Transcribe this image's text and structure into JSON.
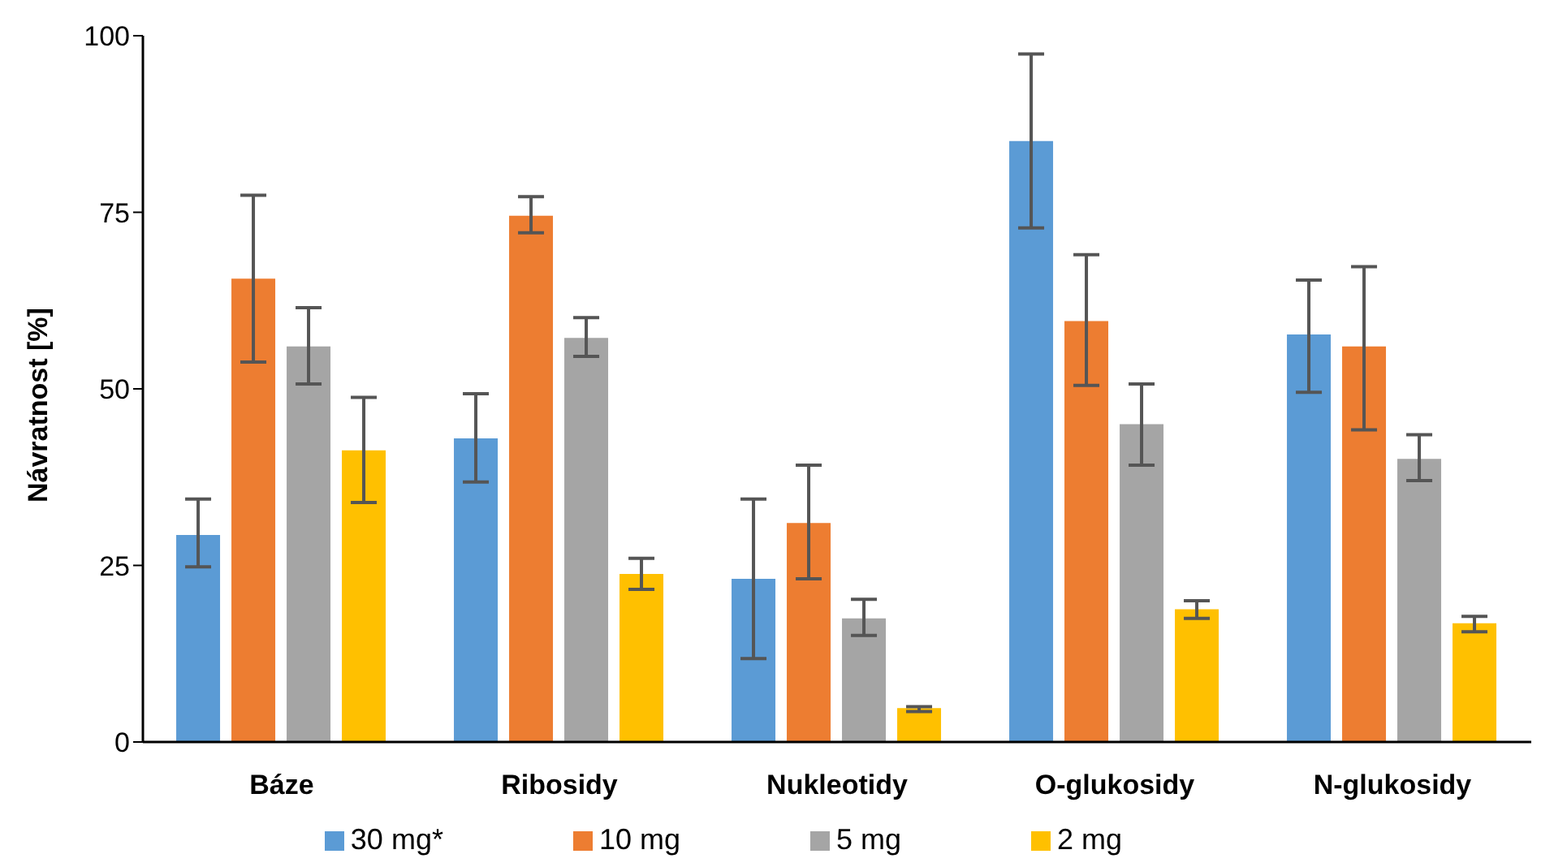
{
  "chart_data": {
    "type": "bar",
    "ylabel": "Návratnost  [%]",
    "categories": [
      "Báze",
      "Ribosidy",
      "Nukleotidy",
      "O-glukosidy",
      "N-glukosidy"
    ],
    "series": [
      {
        "name": "30 mg*",
        "color": "#5b9bd5",
        "values": [
          29.3,
          43.0,
          23.1,
          85.1,
          57.7
        ],
        "errors": [
          [
            24.8,
            34.4
          ],
          [
            36.8,
            49.3
          ],
          [
            11.8,
            34.4
          ],
          [
            72.8,
            97.4
          ],
          [
            49.5,
            65.4
          ]
        ]
      },
      {
        "name": "10 mg",
        "color": "#ed7d31",
        "values": [
          65.6,
          74.5,
          31.0,
          59.6,
          56.0
        ],
        "errors": [
          [
            53.8,
            77.4
          ],
          [
            72.1,
            77.2
          ],
          [
            23.1,
            39.2
          ],
          [
            50.5,
            69.0
          ],
          [
            44.2,
            67.3
          ]
        ]
      },
      {
        "name": "5 mg",
        "color": "#a5a5a5",
        "values": [
          56.0,
          57.2,
          17.5,
          45.0,
          40.1
        ],
        "errors": [
          [
            50.7,
            61.5
          ],
          [
            54.6,
            60.1
          ],
          [
            15.1,
            20.2
          ],
          [
            39.2,
            50.7
          ],
          [
            37.0,
            43.5
          ]
        ]
      },
      {
        "name": "2 mg",
        "color": "#ffc000",
        "values": [
          41.3,
          23.8,
          4.8,
          18.8,
          16.8
        ],
        "errors": [
          [
            33.9,
            48.8
          ],
          [
            21.6,
            26.0
          ],
          [
            4.3,
            5.0
          ],
          [
            17.5,
            20.0
          ],
          [
            15.6,
            17.8
          ]
        ]
      }
    ],
    "ylim": [
      0,
      100
    ],
    "yticks": [
      0,
      25,
      50,
      75,
      100
    ],
    "grid": false,
    "legend": "bottom"
  }
}
